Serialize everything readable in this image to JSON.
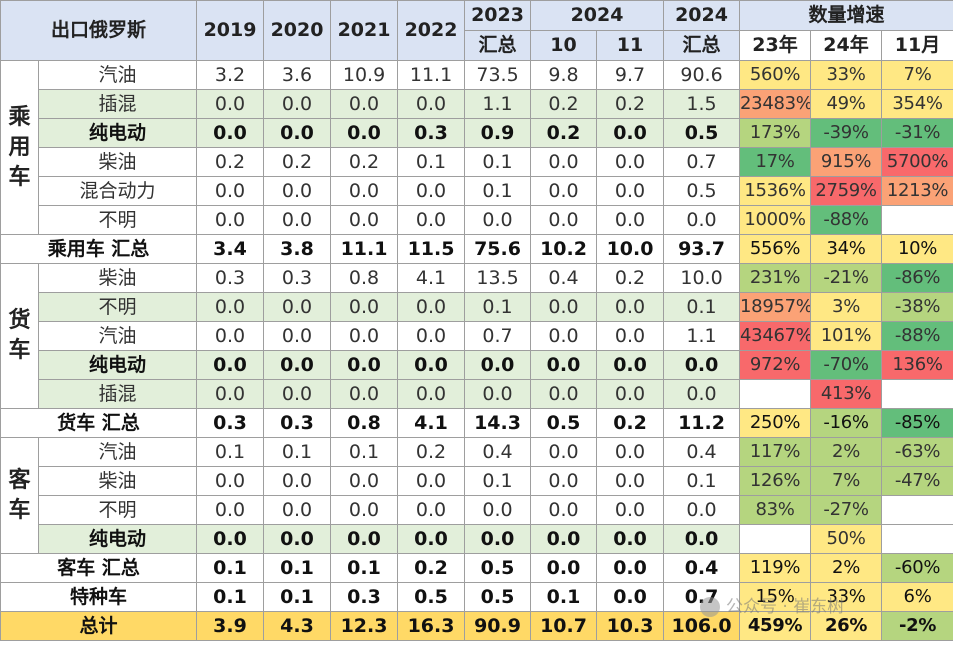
{
  "header": {
    "title": "出口俄罗斯",
    "years": [
      "2019",
      "2020",
      "2021",
      "2022"
    ],
    "y2023_line1": "2023",
    "y2023_line2": "汇总",
    "y2024_label": "2024",
    "m10": "10",
    "m11": "11",
    "y2024b_line1": "2024",
    "y2024b_line2": "汇总",
    "growth_label": "数量增速",
    "g23": "23年",
    "g24": "24年",
    "g11": "11月"
  },
  "groups": {
    "passenger": [
      "乘",
      "用",
      "车"
    ],
    "truck": [
      "货",
      "车"
    ],
    "bus": [
      "客",
      "车"
    ]
  },
  "rows": [
    {
      "label": "汽油",
      "vals": [
        "3.2",
        "3.6",
        "10.9",
        "11.1",
        "73.5",
        "9.8",
        "9.7",
        "90.6"
      ],
      "g": [
        "560%",
        "33%",
        "7%"
      ]
    },
    {
      "label": "插混",
      "vals": [
        "0.0",
        "0.0",
        "0.0",
        "0.0",
        "1.1",
        "0.2",
        "0.2",
        "1.5"
      ],
      "g": [
        "23483%",
        "49%",
        "354%"
      ]
    },
    {
      "label": "纯电动",
      "vals": [
        "0.0",
        "0.0",
        "0.0",
        "0.3",
        "0.9",
        "0.2",
        "0.0",
        "0.5"
      ],
      "g": [
        "173%",
        "-39%",
        "-31%"
      ]
    },
    {
      "label": "柴油",
      "vals": [
        "0.2",
        "0.2",
        "0.2",
        "0.1",
        "0.1",
        "0.0",
        "0.0",
        "0.7"
      ],
      "g": [
        "17%",
        "915%",
        "5700%"
      ]
    },
    {
      "label": "混合动力",
      "vals": [
        "0.0",
        "0.0",
        "0.0",
        "0.0",
        "0.1",
        "0.0",
        "0.0",
        "0.5"
      ],
      "g": [
        "1536%",
        "2759%",
        "1213%"
      ]
    },
    {
      "label": "不明",
      "vals": [
        "0.0",
        "0.0",
        "0.0",
        "0.0",
        "0.0",
        "0.0",
        "0.0",
        "0.0"
      ],
      "g": [
        "1000%",
        "-88%",
        ""
      ]
    },
    {
      "label": "乘用车 汇总",
      "vals": [
        "3.4",
        "3.8",
        "11.1",
        "11.5",
        "75.6",
        "10.2",
        "10.0",
        "93.7"
      ],
      "g": [
        "556%",
        "34%",
        "10%"
      ]
    },
    {
      "label": "柴油",
      "vals": [
        "0.3",
        "0.3",
        "0.8",
        "4.1",
        "13.5",
        "0.4",
        "0.2",
        "10.0"
      ],
      "g": [
        "231%",
        "-21%",
        "-86%"
      ]
    },
    {
      "label": "不明",
      "vals": [
        "0.0",
        "0.0",
        "0.0",
        "0.0",
        "0.1",
        "0.0",
        "0.0",
        "0.1"
      ],
      "g": [
        "18957%",
        "3%",
        "-38%"
      ]
    },
    {
      "label": "汽油",
      "vals": [
        "0.0",
        "0.0",
        "0.0",
        "0.0",
        "0.7",
        "0.0",
        "0.0",
        "1.1"
      ],
      "g": [
        "43467%",
        "101%",
        "-88%"
      ]
    },
    {
      "label": "纯电动",
      "vals": [
        "0.0",
        "0.0",
        "0.0",
        "0.0",
        "0.0",
        "0.0",
        "0.0",
        "0.0"
      ],
      "g": [
        "972%",
        "-70%",
        "136%"
      ]
    },
    {
      "label": "插混",
      "vals": [
        "0.0",
        "0.0",
        "0.0",
        "0.0",
        "0.0",
        "0.0",
        "0.0",
        "0.0"
      ],
      "g": [
        "",
        "413%",
        ""
      ]
    },
    {
      "label": "货车 汇总",
      "vals": [
        "0.3",
        "0.3",
        "0.8",
        "4.1",
        "14.3",
        "0.5",
        "0.2",
        "11.2"
      ],
      "g": [
        "250%",
        "-16%",
        "-85%"
      ]
    },
    {
      "label": "汽油",
      "vals": [
        "0.1",
        "0.1",
        "0.1",
        "0.2",
        "0.4",
        "0.0",
        "0.0",
        "0.4"
      ],
      "g": [
        "117%",
        "2%",
        "-63%"
      ]
    },
    {
      "label": "柴油",
      "vals": [
        "0.0",
        "0.0",
        "0.0",
        "0.0",
        "0.1",
        "0.0",
        "0.0",
        "0.1"
      ],
      "g": [
        "126%",
        "7%",
        "-47%"
      ]
    },
    {
      "label": "不明",
      "vals": [
        "0.0",
        "0.0",
        "0.0",
        "0.0",
        "0.0",
        "0.0",
        "0.0",
        "0.0"
      ],
      "g": [
        "83%",
        "-27%",
        ""
      ]
    },
    {
      "label": "纯电动",
      "vals": [
        "0.0",
        "0.0",
        "0.0",
        "0.0",
        "0.0",
        "0.0",
        "0.0",
        "0.0"
      ],
      "g": [
        "",
        "50%",
        ""
      ]
    },
    {
      "label": "客车 汇总",
      "vals": [
        "0.1",
        "0.1",
        "0.1",
        "0.2",
        "0.5",
        "0.0",
        "0.0",
        "0.4"
      ],
      "g": [
        "119%",
        "2%",
        "-60%"
      ]
    },
    {
      "label": "特种车",
      "vals": [
        "0.1",
        "0.1",
        "0.3",
        "0.5",
        "0.5",
        "0.1",
        "0.0",
        "0.7"
      ],
      "g": [
        "15%",
        "33%",
        "6%"
      ]
    },
    {
      "label": "总计",
      "vals": [
        "3.9",
        "4.3",
        "12.3",
        "16.3",
        "90.9",
        "10.7",
        "10.3",
        "106.0"
      ],
      "g": [
        "459%",
        "26%",
        "-2%"
      ]
    }
  ],
  "colors": {
    "header_bg": "#dae3f3",
    "green_row": "#e2efda",
    "grand_total": "#ffd966",
    "heat_red": "#f8696b",
    "heat_orange": "#fba276",
    "heat_yellow": "#ffe884",
    "heat_lgreen": "#b5d57f",
    "heat_green": "#63be7b"
  },
  "watermark": "公众号 · 崔东树"
}
